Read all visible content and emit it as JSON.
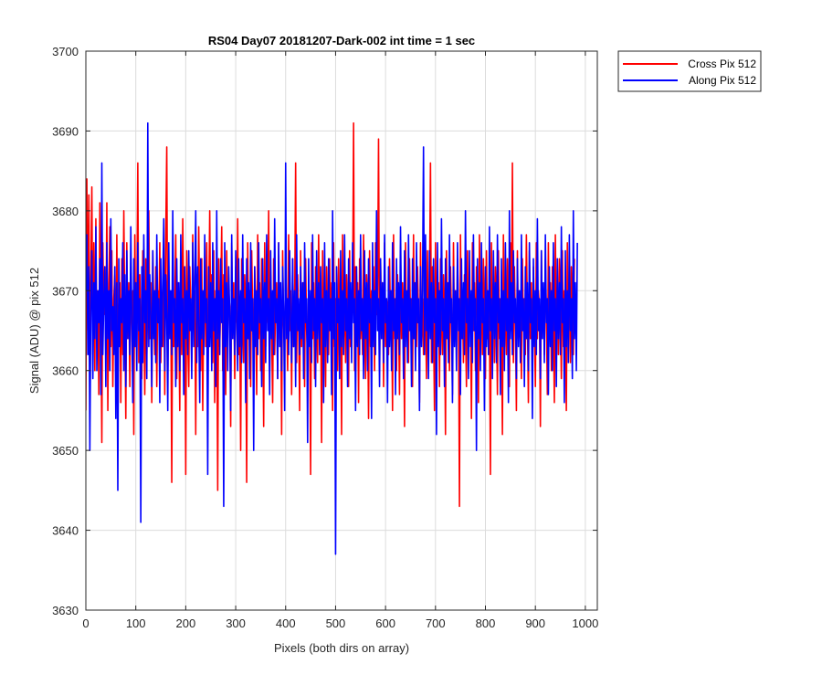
{
  "chart_data": {
    "type": "line",
    "title": "RS04 Day07 20181207-Dark-002 int time = 1 sec",
    "xlabel": "Pixels (both dirs on array)",
    "ylabel": "Signal (ADU) @ pix 512",
    "xlim": [
      0,
      1024
    ],
    "ylim": [
      3630,
      3700
    ],
    "xticks": [
      0,
      100,
      200,
      300,
      400,
      500,
      600,
      700,
      800,
      900,
      1000
    ],
    "yticks": [
      3630,
      3640,
      3650,
      3660,
      3670,
      3680,
      3690,
      3700
    ],
    "xtick_labels": [
      "0",
      "100",
      "200",
      "300",
      "400",
      "500",
      "600",
      "700",
      "800",
      "900",
      "1000"
    ],
    "ytick_labels": [
      "3630",
      "3640",
      "3650",
      "3660",
      "3670",
      "3680",
      "3690",
      "3700"
    ],
    "grid": true,
    "legend_position": "outside-top-right",
    "series": [
      {
        "name": "Cross Pix 512",
        "color": "#ff0000",
        "x_step": 2,
        "values": [
          3655,
          3684,
          3665,
          3682,
          3658,
          3672,
          3683,
          3662,
          3676,
          3660,
          3679,
          3664,
          3670,
          3657,
          3681,
          3668,
          3651,
          3676,
          3667,
          3673,
          3662,
          3681,
          3655,
          3670,
          3678,
          3663,
          3675,
          3658,
          3669,
          3672,
          3659,
          3677,
          3661,
          3668,
          3671,
          3656,
          3674,
          3662,
          3680,
          3667,
          3654,
          3676,
          3664,
          3671,
          3658,
          3673,
          3666,
          3670,
          3652,
          3677,
          3663,
          3668,
          3686,
          3661,
          3672,
          3665,
          3659,
          3675,
          3668,
          3657,
          3674,
          3662,
          3669,
          3680,
          3664,
          3671,
          3656,
          3675,
          3667,
          3662,
          3673,
          3658,
          3670,
          3666,
          3676,
          3661,
          3669,
          3663,
          3674,
          3657,
          3677,
          3688,
          3660,
          3672,
          3665,
          3670,
          3646,
          3674,
          3663,
          3668,
          3677,
          3659,
          3671,
          3666,
          3655,
          3673,
          3662,
          3679,
          3667,
          3670,
          3647,
          3675,
          3664,
          3658,
          3673,
          3668,
          3661,
          3677,
          3666,
          3670,
          3652,
          3672,
          3663,
          3678,
          3667,
          3660,
          3674,
          3655,
          3669,
          3671,
          3663,
          3676,
          3659,
          3667,
          3680,
          3665,
          3672,
          3661,
          3675,
          3656,
          3670,
          3668,
          3645,
          3674,
          3663,
          3669,
          3678,
          3660,
          3672,
          3666,
          3657,
          3675,
          3663,
          3670,
          3668,
          3653,
          3676,
          3665,
          3671,
          3659,
          3673,
          3666,
          3679,
          3662,
          3668,
          3650,
          3674,
          3666,
          3661,
          3672,
          3668,
          3646,
          3676,
          3664,
          3670,
          3658,
          3675,
          3667,
          3662,
          3673,
          3669,
          3657,
          3677,
          3664,
          3671,
          3660,
          3674,
          3667,
          3653,
          3676,
          3663,
          3670,
          3666,
          3680,
          3660,
          3672,
          3665,
          3656,
          3674,
          3662,
          3668,
          3671,
          3659,
          3676,
          3664,
          3669,
          3652,
          3675,
          3666,
          3662,
          3673,
          3668,
          3660,
          3677,
          3665,
          3670,
          3657,
          3674,
          3663,
          3668,
          3686,
          3661,
          3672,
          3666,
          3655,
          3675,
          3663,
          3669,
          3671,
          3658,
          3674,
          3665,
          3662,
          3670,
          3667,
          3647,
          3676,
          3664,
          3671,
          3659,
          3673,
          3666,
          3661,
          3677,
          3668,
          3669,
          3651,
          3675,
          3664,
          3670,
          3658,
          3673,
          3667,
          3662,
          3674,
          3665,
          3671,
          3655,
          3676,
          3663,
          3669,
          3668,
          3660,
          3674,
          3666,
          3670,
          3652,
          3677,
          3664,
          3669,
          3661,
          3672,
          3667,
          3658,
          3675,
          3663,
          3670,
          3668,
          3691,
          3660,
          3673,
          3665,
          3671,
          3656,
          3674,
          3664,
          3669,
          3662,
          3677,
          3666,
          3659,
          3672,
          3668,
          3654,
          3675,
          3663,
          3670,
          3665,
          3673,
          3660,
          3676,
          3667,
          3669,
          3689,
          3661,
          3674,
          3665,
          3671,
          3658,
          3676,
          3663,
          3669,
          3668,
          3662,
          3674,
          3666,
          3670,
          3655,
          3677,
          3664,
          3669,
          3660,
          3672,
          3667,
          3657,
          3675,
          3664,
          3671,
          3668,
          3653,
          3676,
          3665,
          3670,
          3661,
          3674,
          3666,
          3669,
          3658,
          3677,
          3664,
          3671,
          3663,
          3673,
          3667,
          3656,
          3676,
          3665,
          3669,
          3662,
          3674,
          3668,
          3659,
          3675,
          3663,
          3670,
          3686,
          3661,
          3673,
          3666,
          3655,
          3676,
          3664,
          3669,
          3671,
          3658,
          3674,
          3666,
          3662,
          3672,
          3668,
          3652,
          3675,
          3664,
          3671,
          3660,
          3673,
          3667,
          3657,
          3676,
          3665,
          3670,
          3663,
          3674,
          3668,
          3643,
          3677,
          3664,
          3669,
          3661,
          3672,
          3666,
          3658,
          3675,
          3663,
          3670,
          3668,
          3654,
          3676,
          3665,
          3671,
          3660,
          3673,
          3667,
          3656,
          3677,
          3664,
          3669,
          3662,
          3674,
          3666,
          3659,
          3675,
          3664,
          3670,
          3667,
          3647,
          3676,
          3665,
          3671,
          3661,
          3673,
          3668,
          3657,
          3675,
          3664,
          3669,
          3666,
          3652,
          3677,
          3663,
          3670,
          3662,
          3674,
          3667,
          3658,
          3676,
          3665,
          3686,
          3661,
          3673,
          3666,
          3655,
          3675,
          3664,
          3670,
          3668,
          3659,
          3674,
          3665,
          3669,
          3662,
          3677,
          3667,
          3656,
          3675,
          3664,
          3671,
          3660,
          3673,
          3666,
          3658,
          3676,
          3664,
          3670,
          3668,
          3653,
          3675,
          3665,
          3669,
          3662,
          3674,
          3667,
          3657,
          3676,
          3664,
          3671,
          3660,
          3673,
          3666,
          3656,
          3677,
          3665,
          3669,
          3662,
          3674,
          3668,
          3659,
          3675,
          3663,
          3670,
          3667,
          3655,
          3676,
          3665,
          3671,
          3661,
          3673,
          3666,
          3662,
          3674
        ]
      },
      {
        "name": "Along Pix 512",
        "color": "#0000ff",
        "x_step": 2,
        "values": [
          3670,
          3677,
          3662,
          3673,
          3650,
          3668,
          3675,
          3659,
          3671,
          3664,
          3678,
          3660,
          3670,
          3666,
          3674,
          3657,
          3686,
          3662,
          3669,
          3673,
          3658,
          3676,
          3664,
          3670,
          3660,
          3679,
          3665,
          3668,
          3662,
          3673,
          3654,
          3671,
          3645,
          3674,
          3663,
          3669,
          3666,
          3676,
          3660,
          3672,
          3658,
          3675,
          3664,
          3670,
          3662,
          3678,
          3666,
          3656,
          3674,
          3663,
          3671,
          3660,
          3676,
          3665,
          3669,
          3641,
          3673,
          3661,
          3677,
          3666,
          3670,
          3659,
          3691,
          3663,
          3672,
          3667,
          3658,
          3675,
          3664,
          3670,
          3661,
          3677,
          3666,
          3669,
          3656,
          3674,
          3663,
          3671,
          3679,
          3660,
          3672,
          3667,
          3655,
          3676,
          3664,
          3670,
          3662,
          3680,
          3666,
          3669,
          3658,
          3674,
          3663,
          3671,
          3660,
          3677,
          3666,
          3669,
          3657,
          3673,
          3664,
          3670,
          3662,
          3675,
          3665,
          3669,
          3659,
          3676,
          3663,
          3671,
          3680,
          3661,
          3673,
          3666,
          3656,
          3674,
          3664,
          3670,
          3662,
          3677,
          3666,
          3669,
          3647,
          3673,
          3663,
          3671,
          3660,
          3676,
          3665,
          3669,
          3658,
          3680,
          3664,
          3670,
          3662,
          3674,
          3666,
          3669,
          3643,
          3676,
          3663,
          3671,
          3660,
          3673,
          3667,
          3655,
          3677,
          3664,
          3669,
          3662,
          3675,
          3666,
          3660,
          3674,
          3663,
          3670,
          3661,
          3677,
          3666,
          3669,
          3656,
          3674,
          3664,
          3671,
          3659,
          3676,
          3665,
          3669,
          3650,
          3673,
          3663,
          3670,
          3662,
          3676,
          3666,
          3669,
          3658,
          3674,
          3664,
          3671,
          3661,
          3677,
          3665,
          3669,
          3657,
          3675,
          3664,
          3670,
          3662,
          3679,
          3666,
          3669,
          3659,
          3676,
          3663,
          3671,
          3660,
          3673,
          3667,
          3655,
          3686,
          3664,
          3669,
          3662,
          3675,
          3666,
          3661,
          3674,
          3663,
          3670,
          3658,
          3677,
          3665,
          3669,
          3662,
          3673,
          3664,
          3671,
          3659,
          3676,
          3666,
          3669,
          3651,
          3674,
          3663,
          3670,
          3661,
          3677,
          3665,
          3669,
          3658,
          3675,
          3664,
          3671,
          3662,
          3673,
          3666,
          3669,
          3656,
          3676,
          3663,
          3670,
          3661,
          3674,
          3665,
          3669,
          3657,
          3680,
          3664,
          3671,
          3637,
          3673,
          3666,
          3669,
          3659,
          3675,
          3663,
          3670,
          3662,
          3677,
          3665,
          3669,
          3658,
          3674,
          3664,
          3671,
          3661,
          3676,
          3666,
          3669,
          3655,
          3673,
          3663,
          3670,
          3662,
          3677,
          3665,
          3669,
          3659,
          3675,
          3664,
          3671,
          3660,
          3674,
          3666,
          3669,
          3654,
          3676,
          3663,
          3670,
          3662,
          3680,
          3665,
          3669,
          3658,
          3674,
          3664,
          3671,
          3661,
          3677,
          3666,
          3669,
          3656,
          3673,
          3663,
          3670,
          3660,
          3676,
          3665,
          3669,
          3657,
          3674,
          3664,
          3671,
          3662,
          3678,
          3666,
          3669,
          3659,
          3675,
          3663,
          3670,
          3661,
          3677,
          3665,
          3669,
          3658,
          3674,
          3664,
          3671,
          3660,
          3676,
          3666,
          3669,
          3655,
          3673,
          3663,
          3670,
          3688,
          3662,
          3677,
          3665,
          3669,
          3659,
          3675,
          3664,
          3671,
          3661,
          3674,
          3666,
          3669,
          3652,
          3676,
          3663,
          3670,
          3662,
          3679,
          3665,
          3669,
          3658,
          3674,
          3664,
          3671,
          3661,
          3677,
          3666,
          3669,
          3656,
          3673,
          3663,
          3670,
          3660,
          3676,
          3665,
          3669,
          3657,
          3674,
          3664,
          3671,
          3662,
          3680,
          3666,
          3669,
          3659,
          3675,
          3663,
          3670,
          3661,
          3677,
          3665,
          3669,
          3650,
          3674,
          3664,
          3671,
          3660,
          3676,
          3666,
          3669,
          3655,
          3673,
          3663,
          3670,
          3662,
          3678,
          3665,
          3669,
          3659,
          3675,
          3664,
          3671,
          3661,
          3677,
          3666,
          3669,
          3657,
          3674,
          3663,
          3670,
          3660,
          3676,
          3665,
          3669,
          3656,
          3680,
          3664,
          3671,
          3662,
          3675,
          3666,
          3669,
          3659,
          3674,
          3663,
          3670,
          3661,
          3677,
          3665,
          3669,
          3658,
          3673,
          3664,
          3671,
          3660,
          3676,
          3666,
          3669,
          3654,
          3674,
          3663,
          3670,
          3662,
          3679,
          3665,
          3669,
          3659,
          3675,
          3664,
          3671,
          3661,
          3677,
          3666,
          3669,
          3657,
          3673,
          3663,
          3670,
          3660,
          3676,
          3665,
          3669,
          3658,
          3674,
          3664,
          3671,
          3662,
          3678,
          3666,
          3669,
          3656,
          3675,
          3663,
          3670,
          3661,
          3677,
          3665,
          3669,
          3659,
          3680,
          3664,
          3671,
          3660,
          3676
        ]
      }
    ]
  }
}
